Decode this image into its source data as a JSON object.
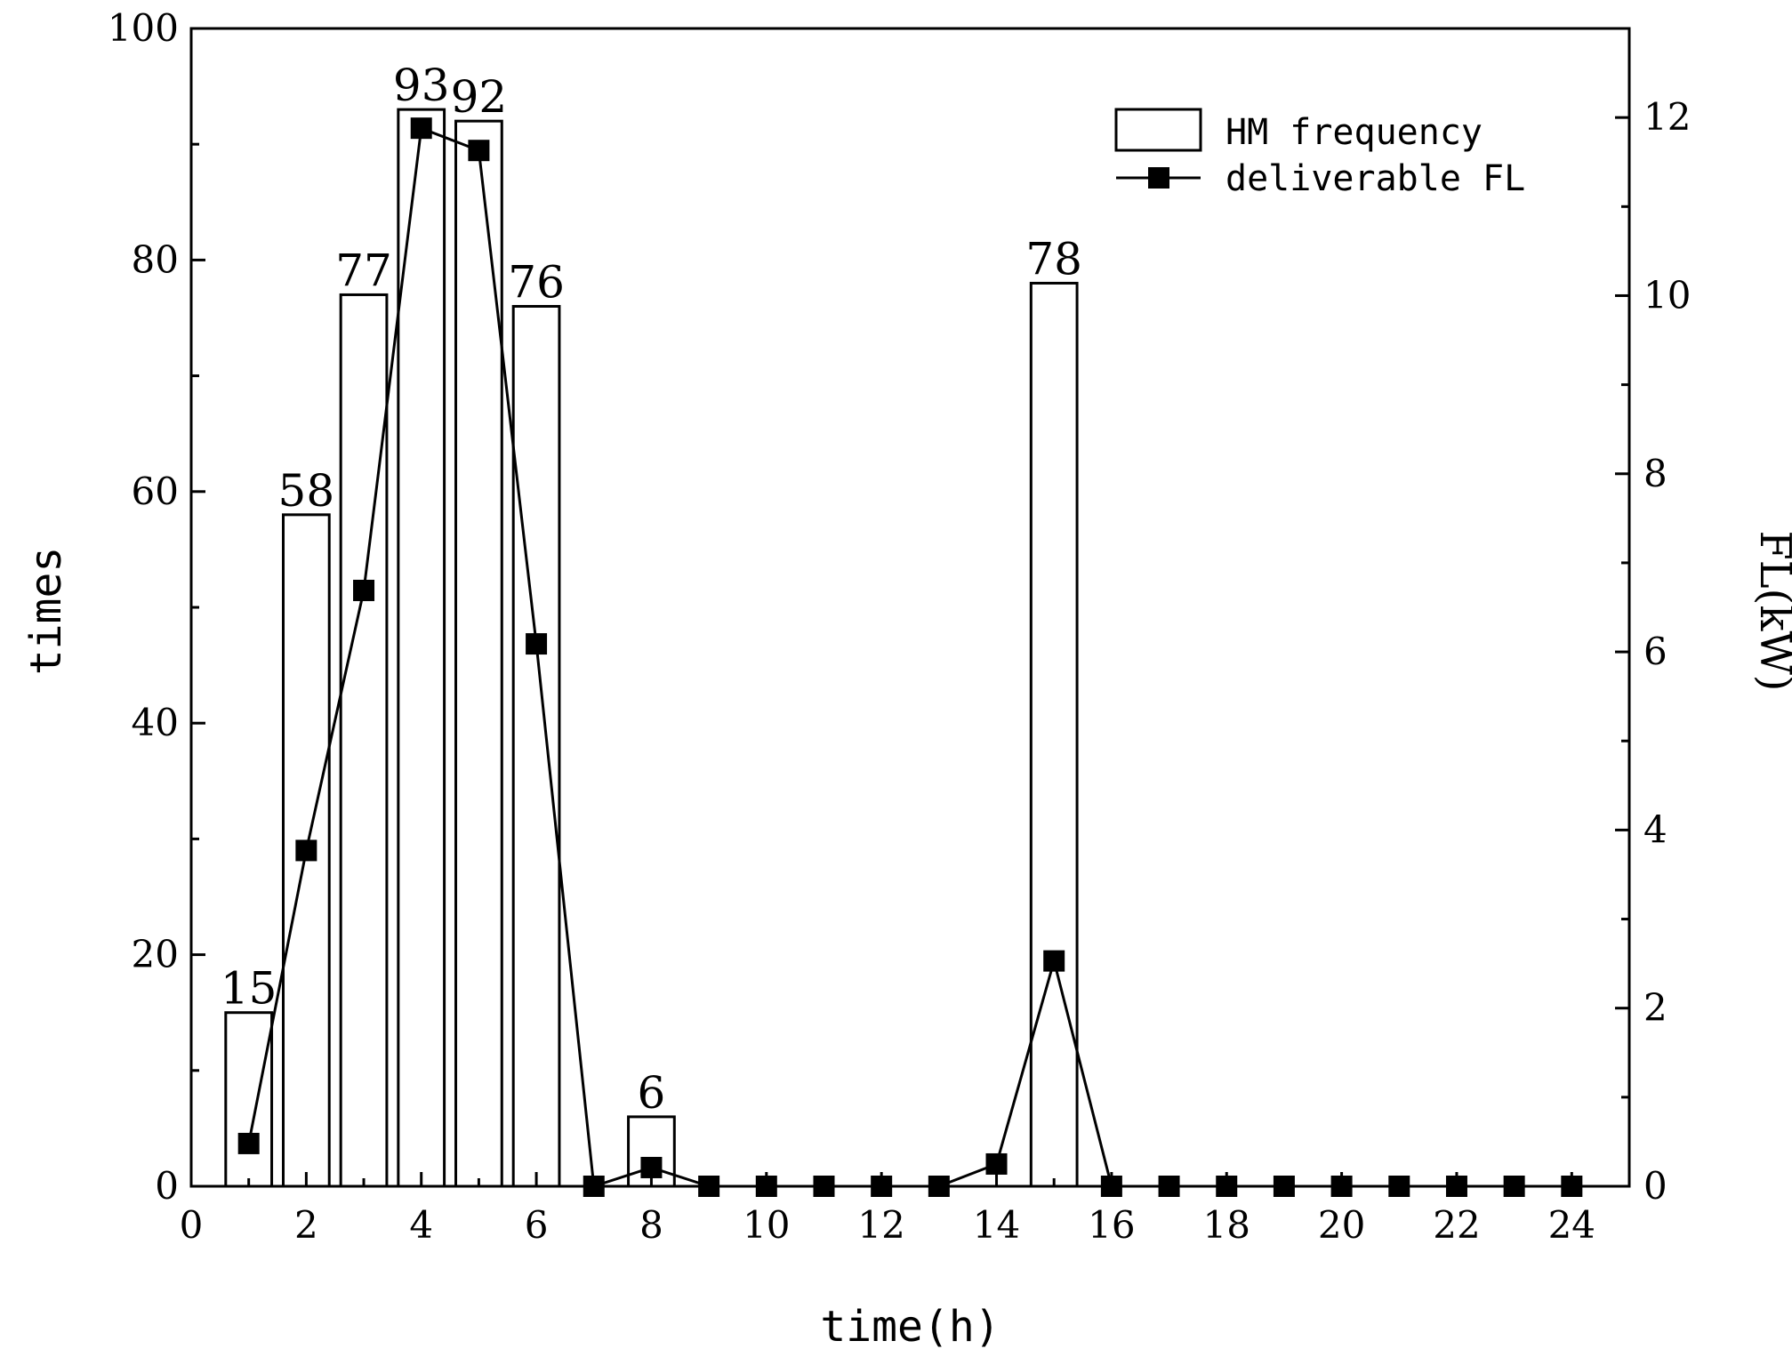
{
  "chart_data": {
    "type": "bar",
    "x_ticks": [
      0,
      2,
      4,
      6,
      8,
      10,
      12,
      14,
      16,
      18,
      20,
      22,
      24
    ],
    "xlim": [
      0,
      25
    ],
    "xlabel": "time(h)",
    "y_ticks": [
      0,
      20,
      40,
      60,
      80,
      100
    ],
    "ylim": [
      0,
      100
    ],
    "ylabel": "times",
    "y2_ticks": [
      0,
      2,
      4,
      6,
      8,
      10,
      12
    ],
    "y2lim": [
      0,
      13
    ],
    "y2label": "FL(kW)",
    "legend_position": "top-right",
    "series": [
      {
        "name": "HM frequency",
        "type": "bar",
        "axis": "left",
        "x": [
          1,
          2,
          3,
          4,
          5,
          6,
          8,
          15
        ],
        "values": [
          15,
          58,
          77,
          93,
          92,
          76,
          6,
          78
        ],
        "labels": [
          "15",
          "58",
          "77",
          "93",
          "92",
          "76",
          "6",
          "78"
        ]
      },
      {
        "name": "deliverable FL",
        "type": "line",
        "marker": "square",
        "axis": "right",
        "x": [
          1,
          2,
          3,
          4,
          5,
          6,
          7,
          8,
          9,
          10,
          11,
          12,
          13,
          14,
          15,
          16,
          17,
          18,
          19,
          20,
          21,
          22,
          23,
          24
        ],
        "values": [
          0.48,
          3.77,
          6.69,
          11.88,
          11.63,
          6.09,
          0,
          0.21,
          0,
          0,
          0,
          0,
          0,
          0.25,
          2.53,
          0,
          0,
          0,
          0,
          0,
          0,
          0,
          0,
          0
        ]
      }
    ]
  }
}
